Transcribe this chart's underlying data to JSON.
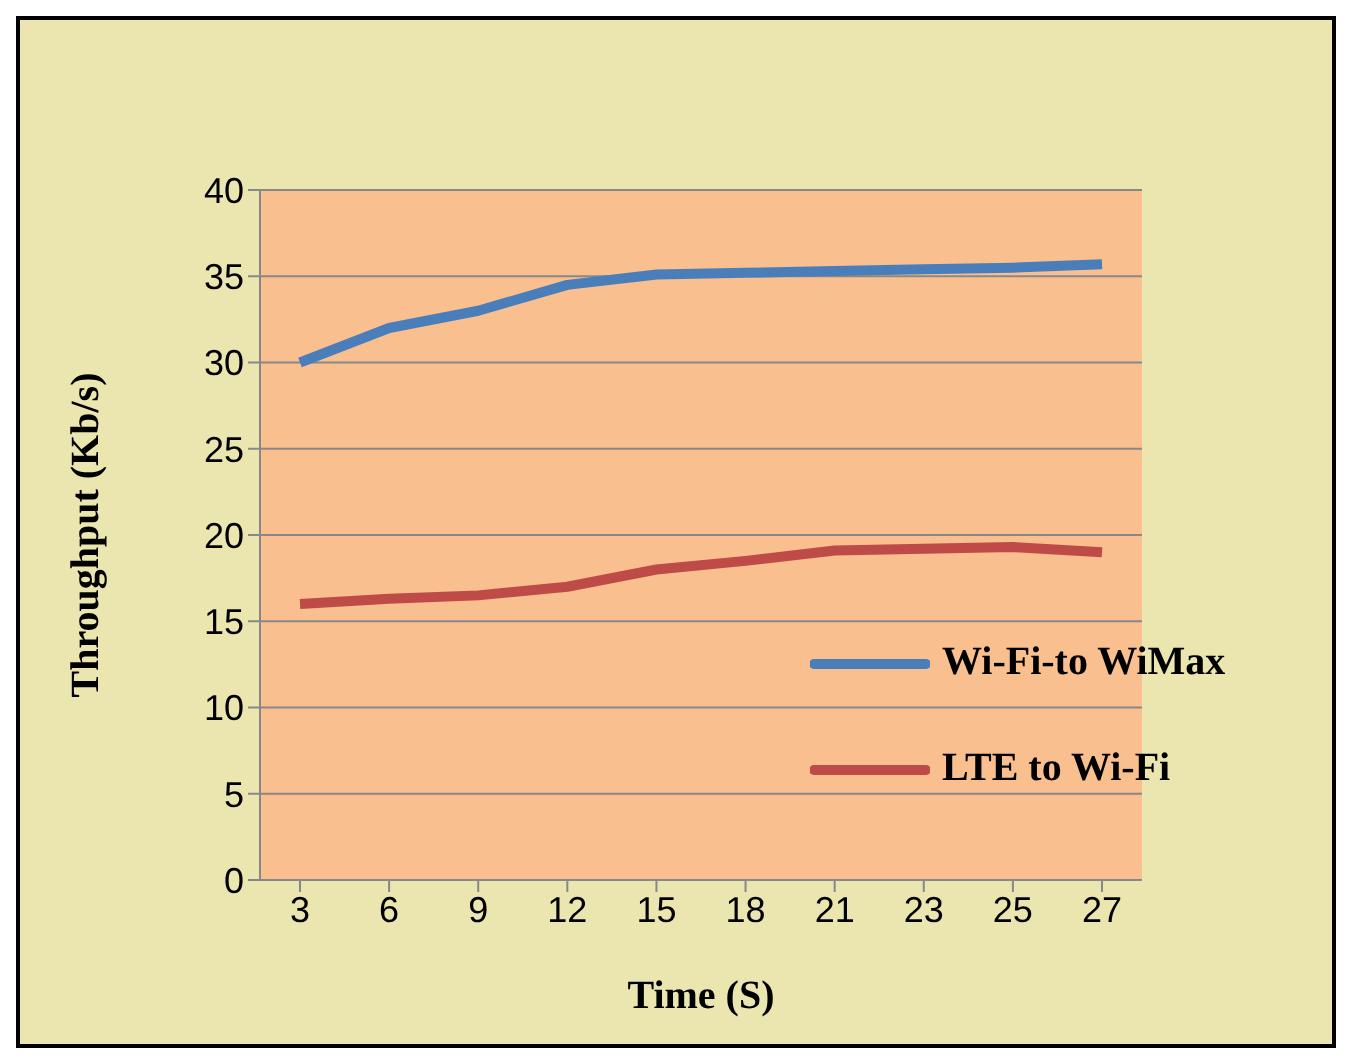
{
  "chart_data": {
    "type": "line",
    "xlabel": "Time (S)",
    "ylabel": "Throughput  (Kb/s)",
    "categories": [
      "3",
      "6",
      "9",
      "12",
      "15",
      "18",
      "21",
      "23",
      "25",
      "27"
    ],
    "series": [
      {
        "name": "Wi-Fi-to WiMax",
        "color": "#4a7ebb",
        "values": [
          30,
          32,
          33,
          34.5,
          35.1,
          35.2,
          35.3,
          35.4,
          35.5,
          35.7
        ]
      },
      {
        "name": "LTE to Wi-Fi",
        "color": "#be4b48",
        "values": [
          16,
          16.3,
          16.5,
          17,
          18,
          18.5,
          19.1,
          19.2,
          19.3,
          19
        ]
      }
    ],
    "ylim": [
      0,
      40
    ],
    "yticks": [
      0,
      5,
      10,
      15,
      20,
      25,
      30,
      35,
      40
    ],
    "grid": "y",
    "legend": "right",
    "marker": "none",
    "line_style": "solid"
  }
}
